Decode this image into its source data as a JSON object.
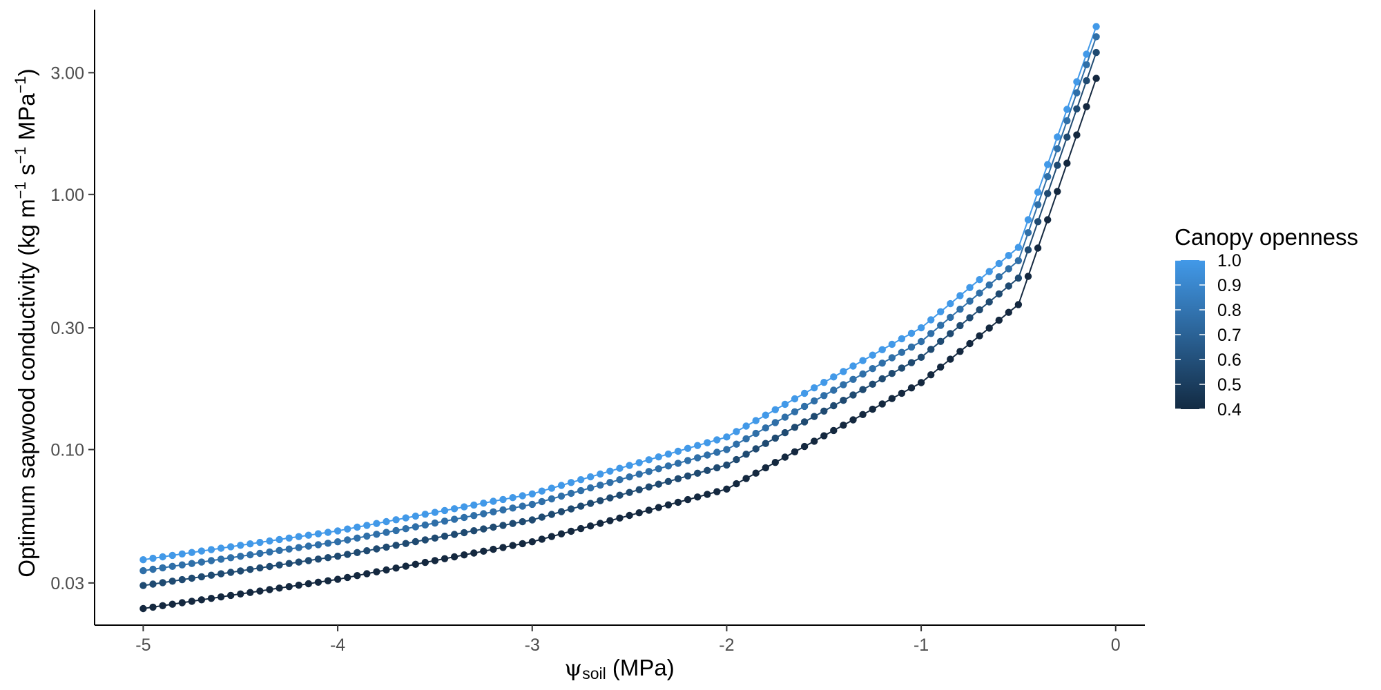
{
  "chart_data": {
    "type": "line",
    "xlabel_symbol": "ψ",
    "xlabel_sub": "soil",
    "xlabel_rest": " (MPa)",
    "ylabel_main": "Optimum sapwood conductivity (kg m",
    "ylabel_sup1": "−1",
    "ylabel_mid": " s",
    "ylabel_sup2": "−1",
    "ylabel_mid2": " MPa",
    "ylabel_sup3": "−1",
    "ylabel_end": ")",
    "x_range": [
      -5.25,
      0.15
    ],
    "y_range": [
      0.0205,
      5.3
    ],
    "y_scale": "log",
    "x_ticks": [
      -5,
      -4,
      -3,
      -2,
      -1,
      0
    ],
    "x_tick_labels": [
      "-5",
      "-4",
      "-3",
      "-2",
      "-1",
      "0"
    ],
    "y_ticks": [
      0.03,
      0.1,
      0.3,
      1.0,
      3.0
    ],
    "y_tick_labels": [
      "0.03",
      "0.10",
      "0.30",
      "1.00",
      "3.00"
    ],
    "grid": false,
    "x": {
      "start": -5.0,
      "end": -0.1,
      "step": 0.05
    },
    "series": [
      {
        "value": 1.0,
        "color": "#4299e8",
        "y_at": [
          [
            -5,
            0.037
          ],
          [
            -4,
            0.048
          ],
          [
            -3,
            0.067
          ],
          [
            -2,
            0.112
          ],
          [
            -1,
            0.3
          ],
          [
            -0.5,
            0.62
          ],
          [
            -0.1,
            4.55
          ]
        ]
      },
      {
        "value": 0.8,
        "color": "#2f6fa8",
        "y_at": [
          [
            -5,
            0.0335
          ],
          [
            -4,
            0.0435
          ],
          [
            -3,
            0.061
          ],
          [
            -2,
            0.1
          ],
          [
            -1,
            0.265
          ],
          [
            -0.5,
            0.55
          ],
          [
            -0.1,
            4.15
          ]
        ]
      },
      {
        "value": 0.6,
        "color": "#1f4a71",
        "y_at": [
          [
            -5,
            0.0293
          ],
          [
            -4,
            0.0382
          ],
          [
            -3,
            0.053
          ],
          [
            -2,
            0.087
          ],
          [
            -1,
            0.23
          ],
          [
            -0.5,
            0.47
          ],
          [
            -0.1,
            3.6
          ]
        ]
      },
      {
        "value": 0.4,
        "color": "#14283f",
        "y_at": [
          [
            -5,
            0.0238
          ],
          [
            -4,
            0.031
          ],
          [
            -3,
            0.0435
          ],
          [
            -2,
            0.07
          ],
          [
            -1,
            0.183
          ],
          [
            -0.5,
            0.37
          ],
          [
            -0.1,
            2.85
          ]
        ]
      }
    ],
    "legend": {
      "title": "Canopy openness",
      "placement": "right",
      "labels": [
        "1.0",
        "0.9",
        "0.8",
        "0.7",
        "0.6",
        "0.5",
        "0.4"
      ],
      "gradient_colors": [
        "#4299e8",
        "#132b43"
      ]
    }
  }
}
